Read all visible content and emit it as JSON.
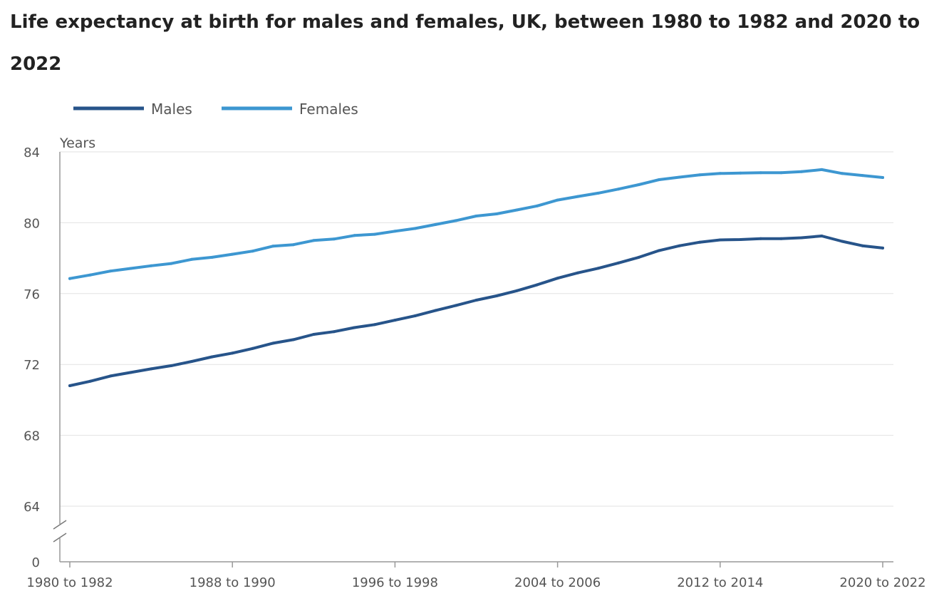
{
  "chart_data": {
    "type": "line",
    "title": "Life expectancy at birth for males and females, UK, between 1980 to 1982 and 2020 to 2022",
    "ylabel": "Years",
    "xlabel": "",
    "ylim": [
      64,
      84
    ],
    "y_break_baseline": 0,
    "yticks": [
      84,
      80,
      76,
      72,
      68,
      64
    ],
    "y_break_label": "0",
    "grid": true,
    "legend_position": "top-left",
    "x": [
      "1980 to 1982",
      "1981 to 1983",
      "1982 to 1984",
      "1983 to 1985",
      "1984 to 1986",
      "1985 to 1987",
      "1986 to 1988",
      "1987 to 1989",
      "1988 to 1990",
      "1989 to 1991",
      "1990 to 1992",
      "1991 to 1993",
      "1992 to 1994",
      "1993 to 1995",
      "1994 to 1996",
      "1995 to 1997",
      "1996 to 1998",
      "1997 to 1999",
      "1998 to 2000",
      "1999 to 2001",
      "2000 to 2002",
      "2001 to 2003",
      "2002 to 2004",
      "2003 to 2005",
      "2004 to 2006",
      "2005 to 2007",
      "2006 to 2008",
      "2007 to 2009",
      "2008 to 2010",
      "2009 to 2011",
      "2010 to 2012",
      "2011 to 2013",
      "2012 to 2014",
      "2013 to 2015",
      "2014 to 2016",
      "2015 to 2017",
      "2016 to 2018",
      "2017 to 2019",
      "2018 to 2020",
      "2019 to 2021",
      "2020 to 2022"
    ],
    "x_tick_labels": [
      "1980 to 1982",
      "1988 to 1990",
      "1996 to 1998",
      "2004 to 2006",
      "2012 to 2014",
      "2020 to 2022"
    ],
    "series": [
      {
        "name": "Males",
        "color": "#27548a",
        "values": [
          70.8,
          71.05,
          71.35,
          71.55,
          71.75,
          71.93,
          72.17,
          72.43,
          72.64,
          72.9,
          73.2,
          73.4,
          73.7,
          73.85,
          74.08,
          74.25,
          74.5,
          74.75,
          75.05,
          75.33,
          75.63,
          75.87,
          76.16,
          76.5,
          76.87,
          77.17,
          77.43,
          77.73,
          78.05,
          78.43,
          78.7,
          78.9,
          79.03,
          79.05,
          79.1,
          79.1,
          79.15,
          79.25,
          78.95,
          78.7,
          78.57
        ]
      },
      {
        "name": "Females",
        "color": "#3d97d1",
        "values": [
          76.85,
          77.05,
          77.27,
          77.42,
          77.57,
          77.7,
          77.93,
          78.05,
          78.22,
          78.4,
          78.68,
          78.76,
          79.0,
          79.08,
          79.28,
          79.35,
          79.52,
          79.68,
          79.9,
          80.12,
          80.38,
          80.5,
          80.72,
          80.95,
          81.28,
          81.48,
          81.67,
          81.9,
          82.15,
          82.43,
          82.57,
          82.7,
          82.78,
          82.8,
          82.82,
          82.82,
          82.88,
          83.0,
          82.78,
          82.67,
          82.55
        ]
      }
    ]
  }
}
